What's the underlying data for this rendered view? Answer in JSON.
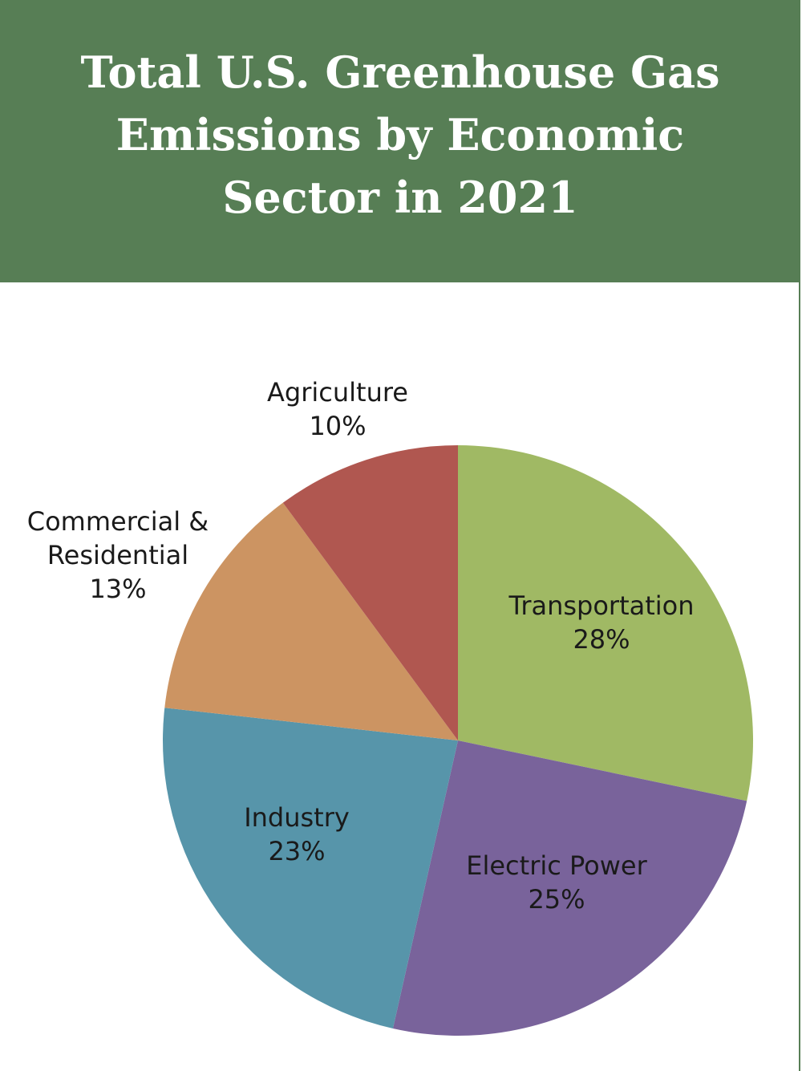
{
  "header": {
    "title": "Total U.S. Greenhouse Gas Emissions by Economic Sector in 2021",
    "background": "#577e55"
  },
  "chart_data": {
    "type": "pie",
    "title": "Total U.S. Greenhouse Gas Emissions by Economic Sector in 2021",
    "unit": "%",
    "start": "12 o'clock, clockwise",
    "slices": [
      {
        "label": "Transportation",
        "label_lines": [
          "Transportation"
        ],
        "value": 28,
        "value_text": "28%",
        "color": "#a0b964"
      },
      {
        "label": "Electric Power",
        "label_lines": [
          "Electric Power"
        ],
        "value": 25,
        "value_text": "25%",
        "color": "#79639b"
      },
      {
        "label": "Industry",
        "label_lines": [
          "Industry"
        ],
        "value": 23,
        "value_text": "23%",
        "color": "#5795aa"
      },
      {
        "label": "Commercial & Residential",
        "label_lines": [
          "Commercial &",
          "Residential"
        ],
        "value": 13,
        "value_text": "13%",
        "color": "#cc9462"
      },
      {
        "label": "Agriculture",
        "label_lines": [
          "Agriculture"
        ],
        "value": 10,
        "value_text": "10%",
        "color": "#b05750"
      }
    ]
  }
}
